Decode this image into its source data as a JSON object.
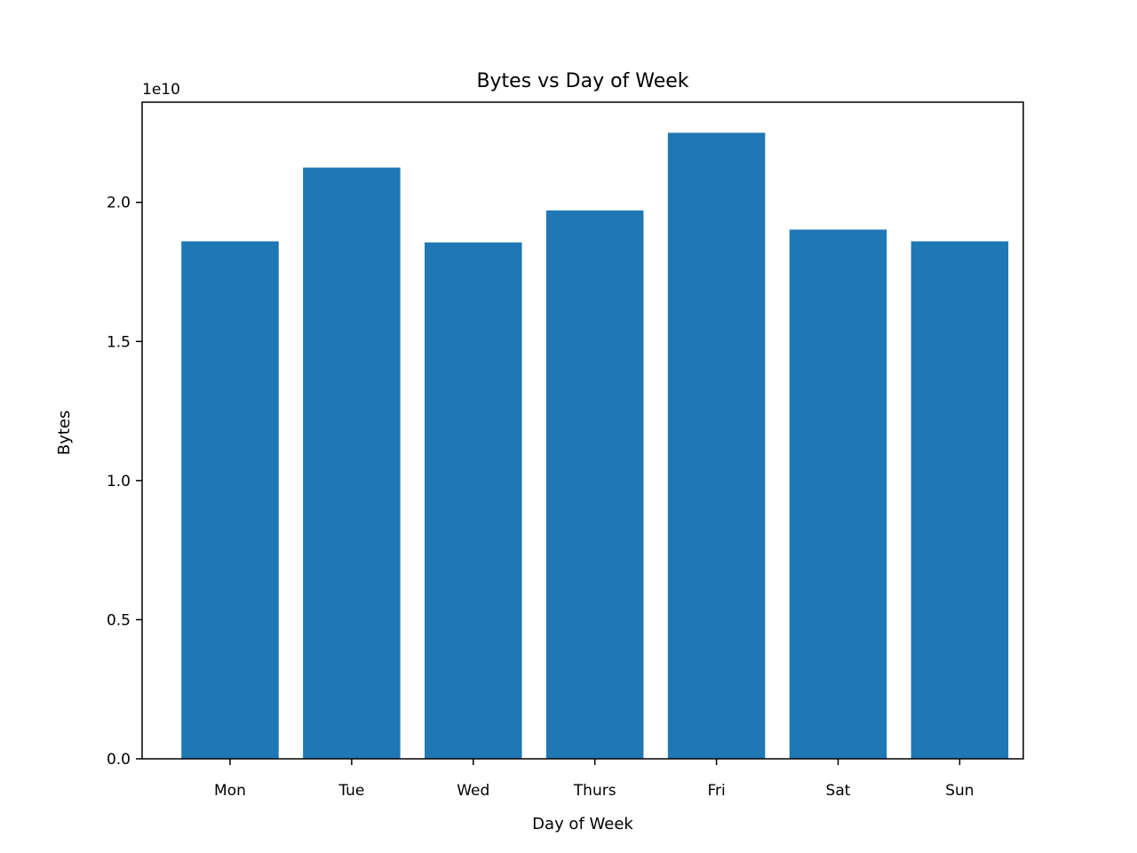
{
  "chart_data": {
    "type": "bar",
    "title": "Bytes vs Day of Week",
    "xlabel": "Day of Week",
    "ylabel": "Bytes",
    "categories": [
      "Mon",
      "Tue",
      "Wed",
      "Thurs",
      "Fri",
      "Sat",
      "Sun"
    ],
    "values": [
      18600000000,
      21250000000,
      18560000000,
      19710000000,
      22500000000,
      19020000000,
      18600000000
    ],
    "ylim": [
      0,
      23600000000
    ],
    "yticks": [
      0,
      0.5,
      1.0,
      1.5,
      2.0
    ],
    "ytick_labels": [
      "0.0",
      "0.5",
      "1.0",
      "1.5",
      "2.0"
    ],
    "y_scale_label": "1e10",
    "y_scale": 10000000000,
    "grid": false,
    "bar_color": "#1f77b4"
  }
}
